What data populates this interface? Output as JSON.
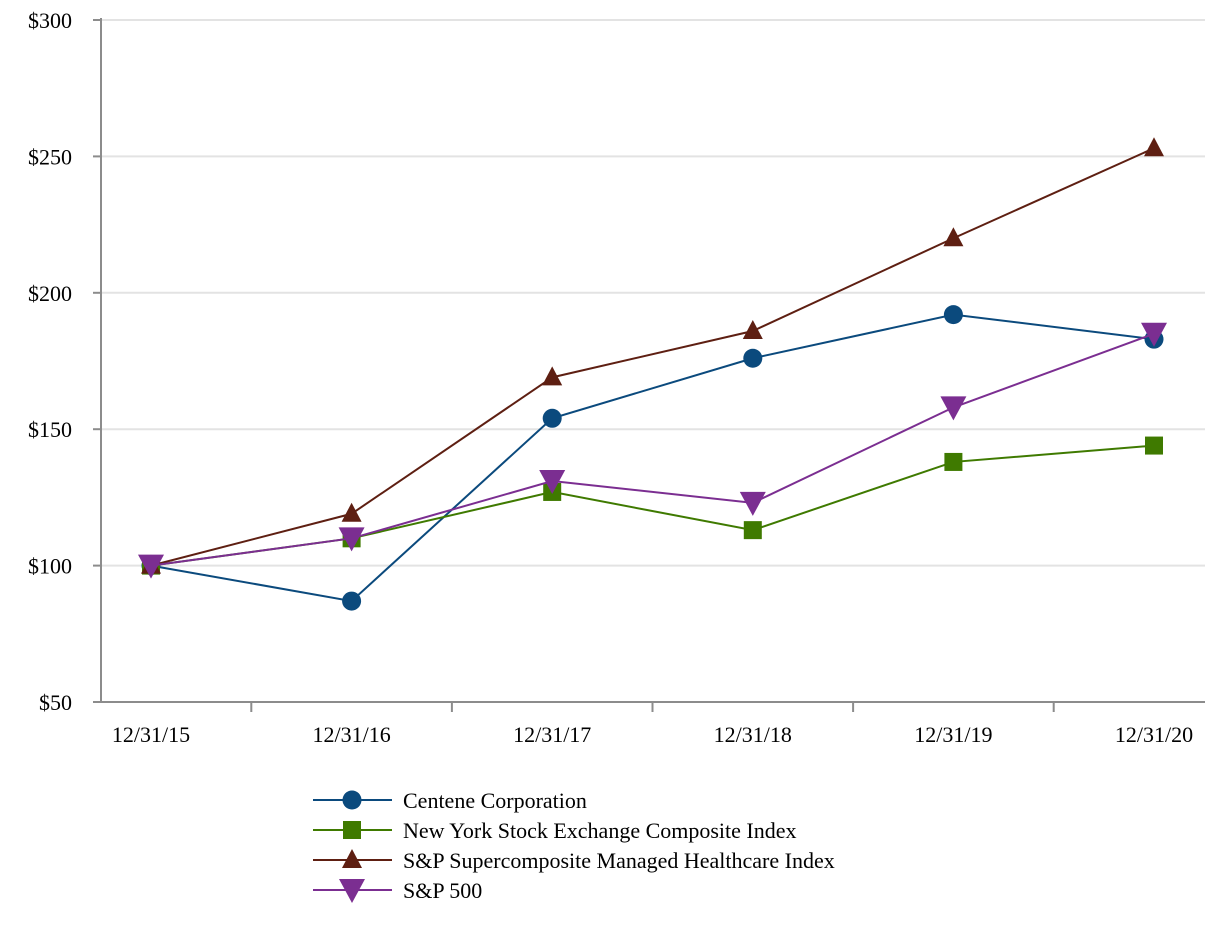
{
  "chart_data": {
    "type": "line",
    "title": "",
    "xlabel": "",
    "ylabel": "",
    "categories": [
      "12/31/15",
      "12/31/16",
      "12/31/17",
      "12/31/18",
      "12/31/19",
      "12/31/20"
    ],
    "ylim": [
      50,
      300
    ],
    "yticks": [
      50,
      100,
      150,
      200,
      250,
      300
    ],
    "ytick_labels": [
      "$50",
      "$100",
      "$150",
      "$200",
      "$250",
      "$300"
    ],
    "grid": true,
    "legend_position": "bottom",
    "series": [
      {
        "name": "Centene Corporation",
        "marker": "circle",
        "color": "#0b4a7d",
        "values": [
          100,
          87,
          154,
          176,
          192,
          183
        ]
      },
      {
        "name": "New York Stock Exchange Composite Index",
        "marker": "square",
        "color": "#3f7a00",
        "values": [
          100,
          110,
          127,
          113,
          138,
          144
        ]
      },
      {
        "name": "S&P Supercomposite Managed Healthcare Index",
        "marker": "triangle-up",
        "color": "#5e1f12",
        "values": [
          100,
          119,
          169,
          186,
          220,
          253
        ]
      },
      {
        "name": "S&P 500",
        "marker": "triangle-down",
        "color": "#7b2e91",
        "values": [
          100,
          110,
          131,
          123,
          158,
          185
        ]
      }
    ]
  }
}
